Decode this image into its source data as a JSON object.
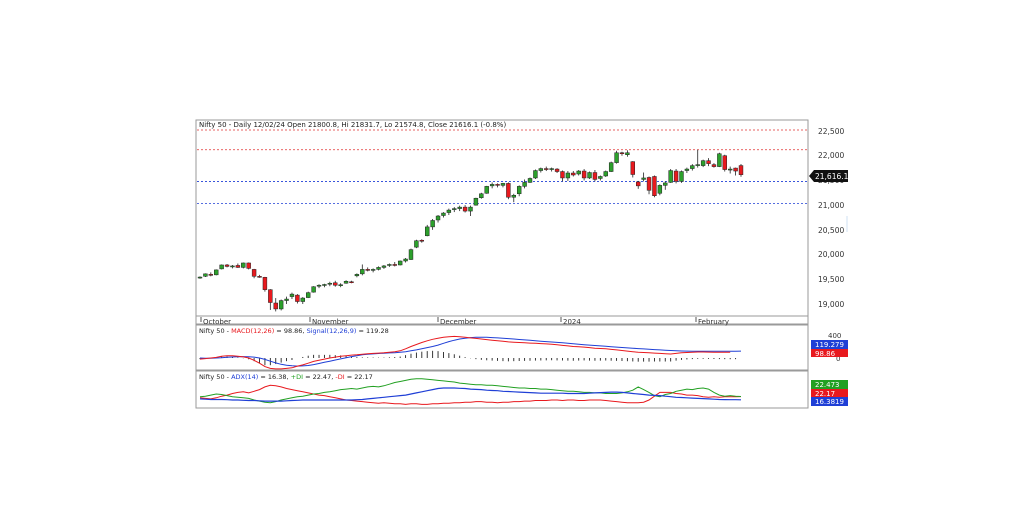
{
  "chart_data": {
    "type": "candlestick",
    "title": "Nifty 50 - Daily 12/02/24 Open 21800.8, Hi 21831.7, Lo 21574.8, Close 21616.1 (-0.8%)",
    "price_ticks": [
      "22,500",
      "22,000",
      "21,500",
      "21,000",
      "20,500",
      "20,000",
      "19,500",
      "19,000"
    ],
    "price_tick_values": [
      22500,
      22000,
      21500,
      21000,
      20500,
      20000,
      19500,
      19000
    ],
    "ylim": [
      18650,
      22750
    ],
    "last_price_label": "21,616.1",
    "last_price": 21616.1,
    "x_labels": [
      {
        "text": "October",
        "index": 0
      },
      {
        "text": "November",
        "index": 21
      },
      {
        "text": "December",
        "index": 44
      },
      {
        "text": "2024",
        "index": 65
      },
      {
        "text": "February",
        "index": 90
      }
    ],
    "h_lines": [
      {
        "value": 22520,
        "color": "#e03030"
      },
      {
        "value": 22120,
        "color": "#e03030"
      },
      {
        "value": 21480,
        "color": "#1f3fd6"
      },
      {
        "value": 21030,
        "color": "#1f3fd6"
      }
    ],
    "candles": [
      [
        19530,
        19560,
        19510,
        19545
      ],
      [
        19560,
        19620,
        19545,
        19610
      ],
      [
        19600,
        19640,
        19560,
        19580
      ],
      [
        19590,
        19700,
        19580,
        19690
      ],
      [
        19710,
        19800,
        19700,
        19790
      ],
      [
        19790,
        19810,
        19740,
        19760
      ],
      [
        19760,
        19790,
        19720,
        19770
      ],
      [
        19780,
        19820,
        19730,
        19740
      ],
      [
        19740,
        19840,
        19720,
        19830
      ],
      [
        19830,
        19840,
        19700,
        19720
      ],
      [
        19700,
        19710,
        19520,
        19560
      ],
      [
        19560,
        19590,
        19530,
        19550
      ],
      [
        19540,
        19550,
        19250,
        19290
      ],
      [
        19290,
        19300,
        18880,
        19030
      ],
      [
        19020,
        19120,
        18850,
        18900
      ],
      [
        18900,
        19090,
        18870,
        19070
      ],
      [
        19070,
        19150,
        19000,
        19100
      ],
      [
        19150,
        19230,
        19100,
        19200
      ],
      [
        19180,
        19200,
        19010,
        19050
      ],
      [
        19050,
        19140,
        19000,
        19120
      ],
      [
        19130,
        19250,
        19120,
        19230
      ],
      [
        19240,
        19360,
        19230,
        19350
      ],
      [
        19360,
        19400,
        19320,
        19380
      ],
      [
        19380,
        19410,
        19340,
        19395
      ],
      [
        19400,
        19450,
        19360,
        19420
      ],
      [
        19430,
        19470,
        19350,
        19380
      ],
      [
        19380,
        19420,
        19340,
        19390
      ],
      [
        19420,
        19480,
        19410,
        19460
      ],
      [
        19450,
        19470,
        19420,
        19440
      ],
      [
        19570,
        19620,
        19540,
        19600
      ],
      [
        19610,
        19800,
        19580,
        19700
      ],
      [
        19700,
        19740,
        19660,
        19680
      ],
      [
        19680,
        19720,
        19640,
        19700
      ],
      [
        19700,
        19760,
        19680,
        19740
      ],
      [
        19740,
        19790,
        19710,
        19770
      ],
      [
        19780,
        19820,
        19750,
        19800
      ],
      [
        19800,
        19850,
        19760,
        19790
      ],
      [
        19790,
        19880,
        19780,
        19870
      ],
      [
        19870,
        19930,
        19840,
        19910
      ],
      [
        19900,
        20120,
        19890,
        20100
      ],
      [
        20150,
        20300,
        20130,
        20280
      ],
      [
        20290,
        20310,
        20240,
        20270
      ],
      [
        20380,
        20600,
        20370,
        20560
      ],
      [
        20560,
        20720,
        20500,
        20690
      ],
      [
        20700,
        20800,
        20650,
        20780
      ],
      [
        20790,
        20860,
        20750,
        20840
      ],
      [
        20850,
        20930,
        20800,
        20900
      ],
      [
        20910,
        20960,
        20860,
        20930
      ],
      [
        20930,
        20990,
        20880,
        20960
      ],
      [
        20960,
        21000,
        20850,
        20880
      ],
      [
        20880,
        20990,
        20780,
        20960
      ],
      [
        21000,
        21150,
        20990,
        21140
      ],
      [
        21150,
        21250,
        21130,
        21230
      ],
      [
        21240,
        21390,
        21230,
        21380
      ],
      [
        21390,
        21460,
        21340,
        21420
      ],
      [
        21420,
        21440,
        21360,
        21400
      ],
      [
        21400,
        21450,
        21360,
        21440
      ],
      [
        21440,
        21460,
        21120,
        21160
      ],
      [
        21160,
        21230,
        21060,
        21200
      ],
      [
        21230,
        21400,
        21180,
        21380
      ],
      [
        21380,
        21520,
        21340,
        21460
      ],
      [
        21460,
        21560,
        21450,
        21540
      ],
      [
        21550,
        21720,
        21530,
        21700
      ],
      [
        21700,
        21760,
        21660,
        21740
      ],
      [
        21740,
        21780,
        21690,
        21720
      ],
      [
        21720,
        21760,
        21680,
        21740
      ],
      [
        21730,
        21750,
        21650,
        21680
      ],
      [
        21680,
        21700,
        21480,
        21550
      ],
      [
        21550,
        21690,
        21490,
        21650
      ],
      [
        21650,
        21690,
        21580,
        21610
      ],
      [
        21630,
        21710,
        21600,
        21690
      ],
      [
        21690,
        21730,
        21500,
        21550
      ],
      [
        21550,
        21680,
        21530,
        21660
      ],
      [
        21660,
        21710,
        21480,
        21520
      ],
      [
        21540,
        21600,
        21500,
        21580
      ],
      [
        21590,
        21700,
        21570,
        21680
      ],
      [
        21680,
        21880,
        21670,
        21860
      ],
      [
        21860,
        22100,
        21840,
        22060
      ],
      [
        22060,
        22080,
        22000,
        22040
      ],
      [
        22020,
        22110,
        21980,
        22060
      ],
      [
        21880,
        21890,
        21560,
        21620
      ],
      [
        21470,
        21490,
        21330,
        21390
      ],
      [
        21520,
        21660,
        21480,
        21550
      ],
      [
        21560,
        21580,
        21220,
        21300
      ],
      [
        21580,
        21600,
        21160,
        21190
      ],
      [
        21240,
        21420,
        21200,
        21400
      ],
      [
        21400,
        21480,
        21310,
        21450
      ],
      [
        21460,
        21730,
        21450,
        21700
      ],
      [
        21690,
        21730,
        21440,
        21480
      ],
      [
        21480,
        21700,
        21450,
        21680
      ],
      [
        21700,
        21760,
        21650,
        21730
      ],
      [
        21740,
        21830,
        21700,
        21800
      ],
      [
        21800,
        22120,
        21760,
        21820
      ],
      [
        21800,
        21920,
        21770,
        21900
      ],
      [
        21900,
        21950,
        21790,
        21840
      ],
      [
        21820,
        21850,
        21760,
        21780
      ],
      [
        21780,
        22060,
        21770,
        22040
      ],
      [
        22000,
        22020,
        21680,
        21720
      ],
      [
        21720,
        21780,
        21640,
        21730
      ],
      [
        21750,
        21760,
        21600,
        21690
      ],
      [
        21800.8,
        21831.7,
        21574.8,
        21616.1
      ]
    ],
    "macd": {
      "legend": [
        "Nifty 50 - ",
        "MACD(12,26)",
        " = 98.86, ",
        "Signal(12,26,9)",
        " = 119.28"
      ],
      "macd_label": "98.86",
      "signal_label": "119.279",
      "ticks": [
        "400",
        "0"
      ],
      "tick_values": [
        400,
        0
      ],
      "ylim": [
        -150,
        450
      ],
      "macd_values": [
        -20,
        -10,
        0,
        10,
        30,
        40,
        40,
        30,
        20,
        0,
        -40,
        -90,
        -150,
        -180,
        -190,
        -190,
        -180,
        -170,
        -140,
        -120,
        -90,
        -60,
        -40,
        -20,
        0,
        15,
        30,
        40,
        50,
        55,
        65,
        75,
        80,
        85,
        90,
        100,
        110,
        125,
        160,
        200,
        235,
        270,
        300,
        325,
        345,
        360,
        370,
        375,
        370,
        360,
        350,
        340,
        330,
        320,
        310,
        300,
        290,
        280,
        275,
        270,
        265,
        260,
        255,
        250,
        245,
        240,
        230,
        220,
        210,
        200,
        195,
        190,
        180,
        170,
        165,
        160,
        150,
        140,
        130,
        120,
        110,
        100,
        95,
        90,
        85,
        80,
        75,
        70,
        80,
        90,
        95,
        100,
        105,
        105,
        103,
        101,
        100,
        99,
        98.86
      ],
      "signal_values": [
        0,
        -5,
        -5,
        0,
        5,
        12,
        18,
        22,
        24,
        22,
        15,
        0,
        -25,
        -55,
        -85,
        -110,
        -125,
        -135,
        -140,
        -138,
        -130,
        -115,
        -95,
        -75,
        -55,
        -35,
        -15,
        5,
        25,
        40,
        55,
        65,
        72,
        78,
        83,
        88,
        93,
        100,
        110,
        125,
        140,
        160,
        180,
        200,
        225,
        255,
        285,
        310,
        330,
        345,
        355,
        360,
        362,
        360,
        355,
        350,
        345,
        338,
        330,
        322,
        315,
        308,
        300,
        293,
        286,
        279,
        272,
        264,
        256,
        248,
        240,
        232,
        225,
        218,
        211,
        204,
        197,
        190,
        183,
        176,
        170,
        164,
        158,
        152,
        146,
        141,
        136,
        131,
        126,
        122,
        120,
        119,
        119,
        119,
        119,
        119,
        119,
        119,
        119,
        119,
        119.28
      ],
      "histogram_values": [
        -20,
        -5,
        5,
        10,
        25,
        28,
        22,
        8,
        -4,
        -22,
        -55,
        -90,
        -125,
        -125,
        -105,
        -80,
        -55,
        -35,
        0,
        18,
        40,
        55,
        55,
        55,
        55,
        50,
        45,
        35,
        25,
        15,
        10,
        10,
        8,
        7,
        7,
        12,
        17,
        25,
        50,
        75,
        95,
        110,
        120,
        125,
        120,
        105,
        85,
        65,
        40,
        15,
        -5,
        -20,
        -32,
        -40,
        -45,
        -50,
        -55,
        -58,
        -55,
        -52,
        -50,
        -48,
        -45,
        -43,
        -41,
        -39,
        -42,
        -44,
        -46,
        -48,
        -45,
        -42,
        -45,
        -48,
        -46,
        -44,
        -47,
        -50,
        -53,
        -56,
        -60,
        -64,
        -63,
        -62,
        -61,
        -61,
        -61,
        -61,
        -46,
        -32,
        -25,
        -19,
        -14,
        -14,
        -16,
        -18,
        -19,
        -20,
        -21,
        -20.42
      ]
    },
    "adx": {
      "legend": [
        "Nifty 50 - ",
        "ADX(14)",
        " = 16.38, ",
        "+DI",
        " = 22.47, ",
        "-DI",
        " = 22.17"
      ],
      "plus_di_label": "22.473",
      "minus_di_label": "22.17",
      "adx_label": "16.3819",
      "ylim": [
        5,
        60
      ],
      "plus_di_values": [
        22,
        23,
        25,
        27,
        26,
        24,
        22,
        21,
        20,
        19,
        16,
        14,
        12,
        11,
        13,
        16,
        18,
        20,
        22,
        23,
        25,
        27,
        28,
        30,
        31,
        33,
        35,
        36,
        37,
        36,
        38,
        40,
        41,
        40,
        42,
        45,
        48,
        50,
        52,
        54,
        55,
        55,
        54,
        53,
        52,
        51,
        50,
        49,
        47,
        46,
        45,
        44,
        44,
        43,
        43,
        42,
        41,
        40,
        39,
        38,
        38,
        37,
        37,
        36,
        36,
        35,
        34,
        33,
        32,
        32,
        31,
        30,
        30,
        29,
        29,
        28,
        28,
        28,
        29,
        31,
        34,
        40,
        35,
        30,
        24,
        22,
        26,
        28,
        32,
        34,
        36,
        35,
        37,
        38,
        36,
        30,
        25,
        23,
        24,
        23,
        22.47
      ],
      "minus_di_values": [
        20,
        19,
        18,
        20,
        23,
        25,
        28,
        30,
        31,
        29,
        32,
        35,
        40,
        43,
        42,
        40,
        37,
        35,
        33,
        31,
        29,
        27,
        25,
        24,
        22,
        20,
        18,
        16,
        15,
        14,
        13,
        12,
        11,
        10,
        11,
        10,
        9,
        9,
        8,
        9,
        9,
        8,
        8,
        9,
        9,
        10,
        10,
        11,
        11,
        12,
        12,
        13,
        13,
        12,
        12,
        11,
        12,
        12,
        13,
        13,
        14,
        14,
        15,
        15,
        15,
        16,
        16,
        15,
        16,
        16,
        15,
        15,
        16,
        16,
        16,
        15,
        14,
        13,
        12,
        11,
        11,
        11,
        12,
        16,
        23,
        30,
        30,
        30,
        28,
        27,
        25,
        25,
        24,
        22,
        21,
        22,
        21,
        22,
        22,
        22,
        22.17
      ],
      "adx_values": [
        18,
        17.5,
        17,
        17,
        17,
        16.5,
        16,
        16,
        15.5,
        15,
        15,
        14.5,
        14,
        14,
        14,
        14,
        14.5,
        15,
        15.5,
        16,
        16,
        16,
        16,
        16,
        16,
        16,
        16,
        16,
        16,
        16.5,
        17,
        18,
        19,
        20,
        21,
        22,
        23,
        24,
        25,
        27,
        29,
        31,
        33,
        35,
        37,
        38,
        38,
        38,
        37.5,
        37,
        36,
        35.5,
        35,
        34,
        33.5,
        33,
        32,
        31.5,
        31,
        30.5,
        30,
        29.5,
        29,
        28.5,
        28.5,
        28.5,
        28.5,
        28.5,
        28,
        28,
        28,
        28,
        28.5,
        29,
        29.5,
        30,
        30.5,
        30.5,
        30,
        29,
        28,
        27,
        26,
        25,
        24.5,
        24,
        23,
        22,
        21,
        20.5,
        20,
        19.5,
        19,
        18.5,
        18,
        17.5,
        17,
        16.8,
        16.6,
        16.5,
        16.38
      ]
    },
    "colors": {
      "up": "#2ca02c",
      "down": "#e8191e",
      "line_red": "#e03030",
      "line_blue": "#1f3fd6",
      "line_green": "#22a022",
      "macd_line": "#e8191e",
      "signal_line": "#1f3fd6",
      "adx_line": "#1f3fd6",
      "plus_di": "#22a022",
      "minus_di": "#e8191e"
    }
  }
}
